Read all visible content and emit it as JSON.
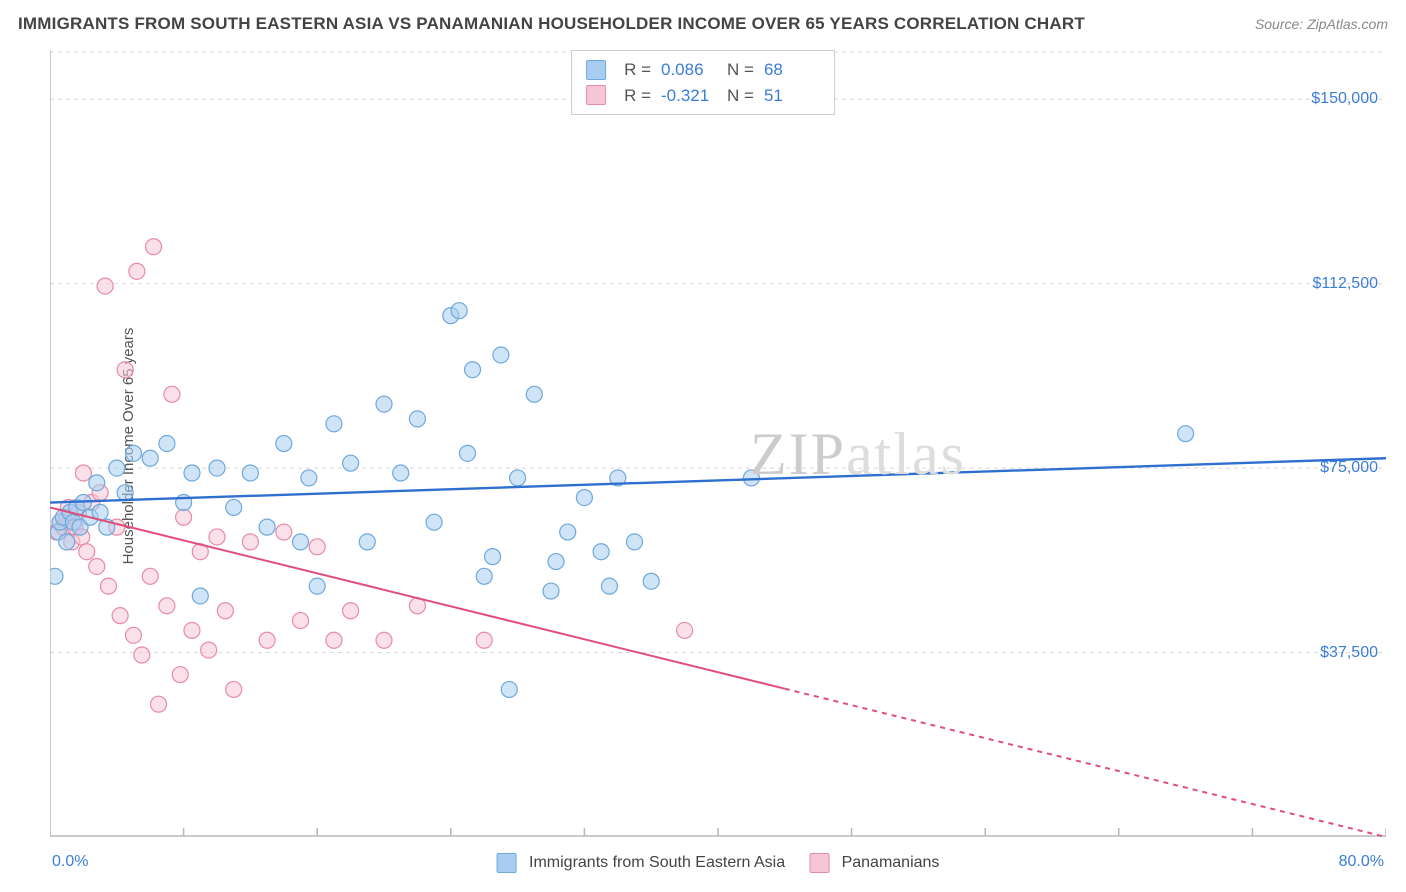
{
  "header": {
    "title": "IMMIGRANTS FROM SOUTH EASTERN ASIA VS PANAMANIAN HOUSEHOLDER INCOME OVER 65 YEARS CORRELATION CHART",
    "source": "Source: ZipAtlas.com"
  },
  "watermark": {
    "zip": "ZIP",
    "atlas": "atlas"
  },
  "chart": {
    "type": "scatter",
    "ylabel": "Householder Income Over 65 years",
    "background_color": "#ffffff",
    "grid_color": "#d8d8d8",
    "axis_color": "#b9b9b9",
    "tick_length": 8,
    "label_color": "#3b7dd8",
    "label_fontsize": 16,
    "title_fontsize": 17,
    "x": {
      "min": 0,
      "max": 80,
      "unit": "%",
      "min_label": "0.0%",
      "max_label": "80.0%",
      "ticks": [
        0,
        8,
        16,
        24,
        32,
        40,
        48,
        56,
        64,
        72,
        80
      ]
    },
    "y": {
      "min": 0,
      "max": 160000,
      "unit": "$",
      "ticks": [
        37500,
        75000,
        112500,
        150000
      ],
      "tick_labels": [
        "$37,500",
        "$75,000",
        "$112,500",
        "$150,000"
      ]
    },
    "series": [
      {
        "id": "sea",
        "label": "Immigrants from South Eastern Asia",
        "fill": "#a8cdf0",
        "stroke": "#6fa8dc",
        "marker_radius": 8,
        "fill_opacity": 0.55,
        "trend": {
          "color": "#2f6fd0",
          "width": 2.4,
          "y0": 68000,
          "y1": 77000,
          "dash_from_x": 80
        },
        "stats": {
          "R": "0.086",
          "N": "68"
        },
        "points": [
          [
            0.3,
            53000
          ],
          [
            0.5,
            62000
          ],
          [
            0.6,
            64000
          ],
          [
            0.8,
            65000
          ],
          [
            1.0,
            60000
          ],
          [
            1.2,
            66000
          ],
          [
            1.4,
            64000
          ],
          [
            1.6,
            67000
          ],
          [
            1.8,
            63000
          ],
          [
            2.0,
            68000
          ],
          [
            2.4,
            65000
          ],
          [
            2.8,
            72000
          ],
          [
            3.0,
            66000
          ],
          [
            3.4,
            63000
          ],
          [
            4.0,
            75000
          ],
          [
            4.5,
            70000
          ],
          [
            5.0,
            78000
          ],
          [
            6.0,
            77000
          ],
          [
            7.0,
            80000
          ],
          [
            8.0,
            68000
          ],
          [
            8.5,
            74000
          ],
          [
            9.0,
            49000
          ],
          [
            10.0,
            75000
          ],
          [
            11.0,
            67000
          ],
          [
            12.0,
            74000
          ],
          [
            13.0,
            63000
          ],
          [
            14.0,
            80000
          ],
          [
            15.0,
            60000
          ],
          [
            15.5,
            73000
          ],
          [
            16.0,
            51000
          ],
          [
            17.0,
            84000
          ],
          [
            18.0,
            76000
          ],
          [
            19.0,
            60000
          ],
          [
            20.0,
            88000
          ],
          [
            21.0,
            74000
          ],
          [
            22.0,
            85000
          ],
          [
            23.0,
            64000
          ],
          [
            24.0,
            106000
          ],
          [
            24.5,
            107000
          ],
          [
            25.0,
            78000
          ],
          [
            25.3,
            95000
          ],
          [
            26.0,
            53000
          ],
          [
            26.5,
            57000
          ],
          [
            27.0,
            98000
          ],
          [
            27.5,
            30000
          ],
          [
            28.0,
            73000
          ],
          [
            29.0,
            90000
          ],
          [
            30.0,
            50000
          ],
          [
            30.3,
            56000
          ],
          [
            31.0,
            62000
          ],
          [
            32.0,
            69000
          ],
          [
            33.0,
            58000
          ],
          [
            33.5,
            51000
          ],
          [
            34.0,
            73000
          ],
          [
            35.0,
            60000
          ],
          [
            36.0,
            52000
          ],
          [
            42.0,
            73000
          ],
          [
            68.0,
            82000
          ]
        ]
      },
      {
        "id": "pan",
        "label": "Panamanians",
        "fill": "#f5c6d5",
        "stroke": "#e88aa8",
        "marker_radius": 8,
        "fill_opacity": 0.55,
        "trend": {
          "color": "#e04f7a",
          "width": 2,
          "y0": 67000,
          "y1": 0,
          "dash_from_x": 44
        },
        "stats": {
          "R": "-0.321",
          "N": "51"
        },
        "points": [
          [
            0.4,
            62000
          ],
          [
            0.6,
            64000
          ],
          [
            0.8,
            63000
          ],
          [
            1.0,
            65000
          ],
          [
            1.1,
            67000
          ],
          [
            1.3,
            60000
          ],
          [
            1.5,
            63000
          ],
          [
            1.7,
            66000
          ],
          [
            1.9,
            61000
          ],
          [
            2.0,
            74000
          ],
          [
            2.2,
            58000
          ],
          [
            2.5,
            68000
          ],
          [
            2.8,
            55000
          ],
          [
            3.0,
            70000
          ],
          [
            3.3,
            112000
          ],
          [
            3.5,
            51000
          ],
          [
            4.0,
            63000
          ],
          [
            4.2,
            45000
          ],
          [
            4.5,
            95000
          ],
          [
            5.0,
            41000
          ],
          [
            5.2,
            115000
          ],
          [
            5.5,
            37000
          ],
          [
            6.0,
            53000
          ],
          [
            6.2,
            120000
          ],
          [
            6.5,
            27000
          ],
          [
            7.0,
            47000
          ],
          [
            7.3,
            90000
          ],
          [
            7.8,
            33000
          ],
          [
            8.0,
            65000
          ],
          [
            8.5,
            42000
          ],
          [
            9.0,
            58000
          ],
          [
            9.5,
            38000
          ],
          [
            10.0,
            61000
          ],
          [
            10.5,
            46000
          ],
          [
            11.0,
            30000
          ],
          [
            12.0,
            60000
          ],
          [
            13.0,
            40000
          ],
          [
            14.0,
            62000
          ],
          [
            15.0,
            44000
          ],
          [
            16.0,
            59000
          ],
          [
            17.0,
            40000
          ],
          [
            18.0,
            46000
          ],
          [
            20.0,
            40000
          ],
          [
            22.0,
            47000
          ],
          [
            26.0,
            40000
          ],
          [
            38.0,
            42000
          ]
        ]
      }
    ],
    "stats_box": {
      "rows": [
        {
          "series": "sea",
          "R_label": "R  =",
          "N_label": "N  ="
        },
        {
          "series": "pan",
          "R_label": "R  =",
          "N_label": "N  ="
        }
      ]
    },
    "bottom_legend": {
      "items": [
        {
          "series": "sea"
        },
        {
          "series": "pan"
        }
      ]
    }
  }
}
